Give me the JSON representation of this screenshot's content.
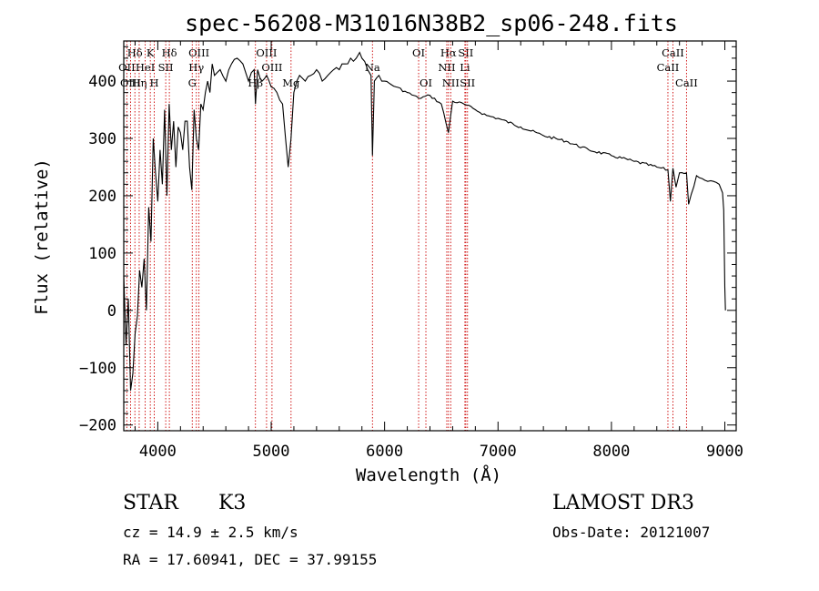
{
  "chart_data": {
    "type": "line",
    "title": "spec-56208-M31016N38B2_sp06-248.fits",
    "xlabel": "Wavelength (Å)",
    "ylabel": "Flux (relative)",
    "xlim": [
      3700,
      9100
    ],
    "ylim": [
      -210,
      470
    ],
    "x_ticks": [
      4000,
      5000,
      6000,
      7000,
      8000,
      9000
    ],
    "y_ticks": [
      -200,
      -100,
      0,
      100,
      200,
      300,
      400
    ],
    "grid": false,
    "series": [
      {
        "name": "flux",
        "x": [
          3700,
          3720,
          3740,
          3760,
          3780,
          3800,
          3820,
          3840,
          3860,
          3880,
          3900,
          3920,
          3940,
          3960,
          3980,
          4000,
          4020,
          4040,
          4060,
          4080,
          4100,
          4120,
          4140,
          4160,
          4180,
          4200,
          4220,
          4240,
          4260,
          4280,
          4300,
          4320,
          4340,
          4360,
          4380,
          4400,
          4420,
          4440,
          4460,
          4480,
          4500,
          4550,
          4600,
          4650,
          4700,
          4750,
          4800,
          4850,
          4861,
          4880,
          4920,
          4960,
          5000,
          5050,
          5100,
          5150,
          5175,
          5200,
          5250,
          5300,
          5350,
          5400,
          5450,
          5500,
          5550,
          5600,
          5650,
          5700,
          5750,
          5780,
          5800,
          5850,
          5880,
          5893,
          5910,
          5950,
          6000,
          6100,
          6200,
          6300,
          6400,
          6500,
          6563,
          6600,
          6700,
          6800,
          6900,
          7000,
          7200,
          7400,
          7600,
          7800,
          8000,
          8200,
          8400,
          8498,
          8520,
          8542,
          8570,
          8600,
          8662,
          8680,
          8750,
          8800,
          8850,
          8900,
          8950,
          8980,
          8990,
          9000,
          9005
        ],
        "values": [
          60,
          -60,
          20,
          -140,
          -110,
          -40,
          -10,
          70,
          40,
          90,
          0,
          180,
          120,
          300,
          240,
          190,
          280,
          220,
          350,
          200,
          360,
          280,
          330,
          250,
          320,
          310,
          280,
          330,
          330,
          250,
          210,
          350,
          300,
          280,
          360,
          350,
          380,
          400,
          380,
          430,
          410,
          420,
          400,
          430,
          440,
          430,
          400,
          420,
          360,
          420,
          400,
          410,
          390,
          380,
          360,
          250,
          300,
          380,
          410,
          400,
          410,
          420,
          400,
          410,
          420,
          420,
          430,
          440,
          440,
          450,
          440,
          420,
          410,
          270,
          400,
          410,
          400,
          390,
          380,
          370,
          375,
          360,
          310,
          365,
          360,
          350,
          340,
          335,
          320,
          305,
          295,
          280,
          270,
          260,
          250,
          245,
          190,
          248,
          215,
          240,
          240,
          185,
          235,
          230,
          225,
          225,
          220,
          205,
          175,
          40,
          0
        ]
      }
    ],
    "line_markers": [
      {
        "label": "Hδ",
        "wavelength": 3798,
        "row": 1
      },
      {
        "label": "OII",
        "wavelength": 3727,
        "row": 2
      },
      {
        "label": "OIII",
        "wavelength": 3760,
        "row": 3
      },
      {
        "label": "Hη",
        "wavelength": 3836,
        "row": 3
      },
      {
        "label": "K",
        "wavelength": 3934,
        "row": 1
      },
      {
        "label": "HeI",
        "wavelength": 3889,
        "row": 2
      },
      {
        "label": "H",
        "wavelength": 3969,
        "row": 3
      },
      {
        "label": "Hδ",
        "wavelength": 4102,
        "row": 1
      },
      {
        "label": "SII",
        "wavelength": 4070,
        "row": 2
      },
      {
        "label": "OIII",
        "wavelength": 4363,
        "row": 1
      },
      {
        "label": "Hγ",
        "wavelength": 4340,
        "row": 2
      },
      {
        "label": "G",
        "wavelength": 4304,
        "row": 3
      },
      {
        "label": "Hβ",
        "wavelength": 4861,
        "row": 3
      },
      {
        "label": "OIII",
        "wavelength": 4959,
        "row": 1
      },
      {
        "label": "OIII",
        "wavelength": 5007,
        "row": 2
      },
      {
        "label": "Mg",
        "wavelength": 5175,
        "row": 3
      },
      {
        "label": "Na",
        "wavelength": 5893,
        "row": 2
      },
      {
        "label": "OI",
        "wavelength": 6300,
        "row": 1
      },
      {
        "label": "OI",
        "wavelength": 6364,
        "row": 3
      },
      {
        "label": "Hα",
        "wavelength": 6563,
        "row": 1
      },
      {
        "label": "NII",
        "wavelength": 6548,
        "row": 2
      },
      {
        "label": "NII",
        "wavelength": 6583,
        "row": 3
      },
      {
        "label": "SII",
        "wavelength": 6716,
        "row": 1
      },
      {
        "label": "Li",
        "wavelength": 6708,
        "row": 2
      },
      {
        "label": "SII",
        "wavelength": 6731,
        "row": 3
      },
      {
        "label": "CaII",
        "wavelength": 8542,
        "row": 1
      },
      {
        "label": "CaII",
        "wavelength": 8498,
        "row": 2
      },
      {
        "label": "CaII",
        "wavelength": 8662,
        "row": 3
      }
    ]
  },
  "info": {
    "object_class": "STAR",
    "subclass": "K3",
    "survey": "LAMOST DR3",
    "redshift": "cz = 14.9 ± 2.5 km/s",
    "obs_date": "Obs-Date: 20121007",
    "coords": "RA =  17.60941, DEC =  37.99155"
  },
  "colors": {
    "line": "#000000",
    "marker": "#cc0000"
  }
}
